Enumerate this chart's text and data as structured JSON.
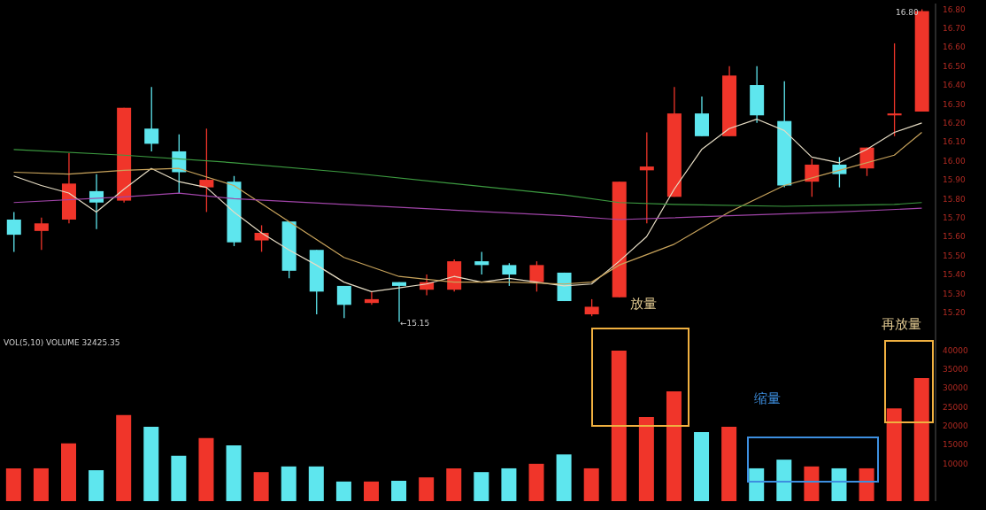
{
  "chart_data": [
    {
      "type": "candlestick",
      "categories": [
        null,
        null,
        null,
        null,
        null,
        null,
        null,
        null,
        null,
        null,
        null,
        null,
        null,
        null,
        null,
        null,
        null,
        null,
        null,
        null,
        null,
        null,
        null,
        null,
        null,
        null,
        null,
        null,
        null,
        null,
        null,
        null,
        null,
        null
      ],
      "ohlc": [
        [
          15.69,
          15.73,
          15.52,
          15.61
        ],
        [
          15.63,
          15.7,
          15.53,
          15.67
        ],
        [
          15.69,
          16.04,
          15.67,
          15.88
        ],
        [
          15.84,
          15.93,
          15.64,
          15.78
        ],
        [
          15.79,
          16.28,
          15.78,
          16.28
        ],
        [
          16.17,
          16.39,
          16.05,
          16.09
        ],
        [
          16.05,
          16.14,
          15.83,
          15.94
        ],
        [
          15.86,
          16.17,
          15.73,
          15.9
        ],
        [
          15.89,
          15.92,
          15.55,
          15.57
        ],
        [
          15.58,
          15.66,
          15.52,
          15.62
        ],
        [
          15.68,
          15.68,
          15.38,
          15.42
        ],
        [
          15.53,
          15.53,
          15.19,
          15.31
        ],
        [
          15.34,
          15.34,
          15.17,
          15.24
        ],
        [
          15.25,
          15.31,
          15.24,
          15.27
        ],
        [
          15.36,
          15.36,
          15.15,
          15.34
        ],
        [
          15.32,
          15.4,
          15.29,
          15.36
        ],
        [
          15.32,
          15.48,
          15.31,
          15.47
        ],
        [
          15.47,
          15.52,
          15.4,
          15.45
        ],
        [
          15.45,
          15.46,
          15.34,
          15.4
        ],
        [
          15.36,
          15.47,
          15.31,
          15.45
        ],
        [
          15.41,
          15.41,
          15.26,
          15.26
        ],
        [
          15.19,
          15.27,
          15.18,
          15.23
        ],
        [
          15.28,
          15.89,
          15.28,
          15.89
        ],
        [
          15.95,
          16.15,
          15.67,
          15.97
        ],
        [
          15.81,
          16.39,
          15.81,
          16.25
        ],
        [
          16.25,
          16.34,
          16.13,
          16.13
        ],
        [
          16.13,
          16.5,
          16.13,
          16.45
        ],
        [
          16.4,
          16.5,
          16.2,
          16.24
        ],
        [
          16.21,
          16.42,
          15.86,
          15.87
        ],
        [
          15.89,
          16.01,
          15.81,
          15.98
        ],
        [
          15.98,
          16.02,
          15.86,
          15.93
        ],
        [
          15.96,
          16.07,
          15.92,
          16.07
        ],
        [
          16.24,
          16.62,
          16.13,
          16.25
        ],
        [
          16.26,
          16.8,
          16.26,
          16.79
        ]
      ],
      "colors": [
        "#5ee6ee",
        "#f0352a",
        "#f0352a",
        "#5ee6ee",
        "#f0352a",
        "#5ee6ee",
        "#5ee6ee",
        "#f0352a",
        "#5ee6ee",
        "#f0352a",
        "#5ee6ee",
        "#5ee6ee",
        "#5ee6ee",
        "#f0352a",
        "#5ee6ee",
        "#f0352a",
        "#f0352a",
        "#5ee6ee",
        "#5ee6ee",
        "#f0352a",
        "#5ee6ee",
        "#f0352a",
        "#f0352a",
        "#f0352a",
        "#f0352a",
        "#5ee6ee",
        "#f0352a",
        "#5ee6ee",
        "#5ee6ee",
        "#f0352a",
        "#5ee6ee",
        "#f0352a",
        "#f0352a",
        "#f0352a"
      ],
      "series": [
        {
          "type": "line",
          "color": "#e6dcc4",
          "values": [
            15.92,
            15.87,
            15.83,
            15.73,
            15.85,
            15.96,
            15.89,
            15.86,
            15.73,
            15.62,
            15.53,
            15.45,
            15.36,
            15.31,
            15.33,
            15.35,
            15.39,
            15.36,
            15.38,
            15.36,
            15.34,
            15.35,
            15.47,
            15.6,
            15.85,
            16.06,
            16.17,
            16.22,
            16.16,
            16.02,
            15.99,
            16.06,
            16.15,
            16.2
          ]
        },
        {
          "type": "line",
          "color": "#c9a45c",
          "values": [
            15.94,
            null,
            15.93,
            null,
            15.95,
            null,
            15.96,
            null,
            15.87,
            null,
            15.68,
            null,
            15.49,
            null,
            15.39,
            null,
            15.36,
            null,
            15.36,
            null,
            15.35,
            15.36,
            15.45,
            null,
            15.56,
            null,
            15.73,
            null,
            15.87,
            null,
            15.95,
            null,
            16.03,
            16.15
          ]
        },
        {
          "type": "line",
          "color": "#3c9a40",
          "values": [
            16.06,
            null,
            null,
            null,
            16.03,
            null,
            null,
            null,
            15.99,
            null,
            null,
            null,
            15.94,
            null,
            null,
            null,
            15.88,
            null,
            null,
            null,
            15.82,
            null,
            15.78,
            null,
            15.77,
            null,
            null,
            null,
            15.76,
            null,
            null,
            null,
            15.77,
            15.78
          ]
        },
        {
          "type": "line",
          "color": "#a044a8",
          "values": [
            15.78,
            null,
            null,
            null,
            15.81,
            null,
            15.83,
            null,
            15.8,
            null,
            null,
            null,
            15.77,
            null,
            null,
            null,
            15.74,
            null,
            null,
            null,
            15.71,
            null,
            15.69,
            null,
            null,
            null,
            15.71,
            null,
            null,
            null,
            15.73,
            null,
            null,
            15.75
          ]
        }
      ],
      "ylim": [
        15.12,
        16.83
      ],
      "yticks": [
        {
          "value": 15.2,
          "label": "15.20"
        },
        {
          "value": 15.3,
          "label": "15.30"
        },
        {
          "value": 15.4,
          "label": "15.40"
        },
        {
          "value": 15.5,
          "label": "15.50"
        },
        {
          "value": 15.6,
          "label": "15.60"
        },
        {
          "value": 15.7,
          "label": "15.70"
        },
        {
          "value": 15.8,
          "label": "15.80"
        },
        {
          "value": 15.9,
          "label": "15.90"
        },
        {
          "value": 16.0,
          "label": "16.00"
        },
        {
          "value": 16.1,
          "label": "16.10"
        },
        {
          "value": 16.2,
          "label": "16.20"
        },
        {
          "value": 16.3,
          "label": "16.30"
        },
        {
          "value": 16.4,
          "label": "16.40"
        },
        {
          "value": 16.5,
          "label": "16.50"
        },
        {
          "value": 16.6,
          "label": "16.60"
        },
        {
          "value": 16.7,
          "label": "16.70"
        },
        {
          "value": 16.8,
          "label": "16.80"
        }
      ],
      "tick_labels": "y",
      "annotations": [
        "←15.15",
        "16.80"
      ]
    },
    {
      "type": "bar",
      "title": "VOL(5,10) VOLUME 32425.35",
      "categories": [
        null,
        null,
        null,
        null,
        null,
        null,
        null,
        null,
        null,
        null,
        null,
        null,
        null,
        null,
        null,
        null,
        null,
        null,
        null,
        null,
        null,
        null,
        null,
        null,
        null,
        null,
        null,
        null,
        null,
        null,
        null,
        null,
        null,
        null
      ],
      "values": [
        8700,
        8700,
        15300,
        8200,
        22800,
        19700,
        12000,
        16700,
        14800,
        7700,
        9200,
        9200,
        5200,
        5200,
        5400,
        6300,
        8700,
        7700,
        8700,
        9900,
        12400,
        8700,
        39900,
        22300,
        29100,
        18300,
        19700,
        8700,
        11000,
        9200,
        8700,
        8700,
        24600,
        32600
      ],
      "colors": [
        "#f0352a",
        "#f0352a",
        "#f0352a",
        "#5ee6ee",
        "#f0352a",
        "#5ee6ee",
        "#5ee6ee",
        "#f0352a",
        "#5ee6ee",
        "#f0352a",
        "#5ee6ee",
        "#5ee6ee",
        "#5ee6ee",
        "#f0352a",
        "#5ee6ee",
        "#f0352a",
        "#f0352a",
        "#5ee6ee",
        "#5ee6ee",
        "#f0352a",
        "#5ee6ee",
        "#f0352a",
        "#f0352a",
        "#f0352a",
        "#f0352a",
        "#5ee6ee",
        "#f0352a",
        "#5ee6ee",
        "#5ee6ee",
        "#f0352a",
        "#5ee6ee",
        "#f0352a",
        "#f0352a",
        "#f0352a"
      ],
      "ylim": [
        0,
        46000
      ],
      "yticks": [
        10000,
        15000,
        20000,
        25000,
        30000,
        35000,
        40000
      ],
      "tick_labels": "y",
      "annotations": [
        "放量",
        "缩量",
        "再放量"
      ]
    }
  ]
}
